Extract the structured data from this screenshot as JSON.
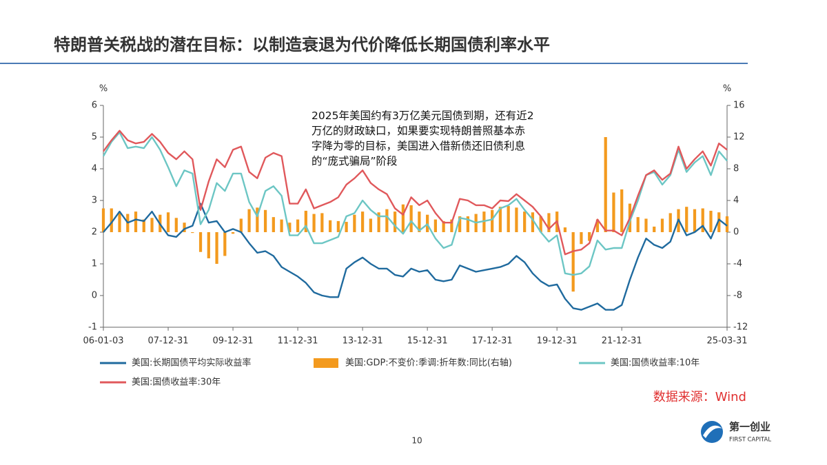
{
  "page_title": "特朗普关税战的潜在目标：以制造衰退为代价降低长期国债利率水平",
  "chart_data": {
    "type": "line",
    "annotation": [
      "2025年美国约有3万亿美元国债到期，还有近2",
      "万亿的财政缺口，如果要实现特朗普照基本赤",
      "字降为零的目标，美国进入借新债还旧债利息",
      "的“庞式骗局”阶段"
    ],
    "y_unit": "%",
    "y2_unit": "%",
    "categories": [
      "06-01-03",
      null,
      null,
      null,
      null,
      null,
      null,
      null,
      "07-12-31",
      null,
      null,
      null,
      null,
      null,
      null,
      null,
      "09-12-31",
      null,
      null,
      null,
      null,
      null,
      null,
      null,
      "11-12-31",
      null,
      null,
      null,
      null,
      null,
      null,
      null,
      "13-12-31",
      null,
      null,
      null,
      null,
      null,
      null,
      null,
      "15-12-31",
      null,
      null,
      null,
      null,
      null,
      null,
      null,
      "17-12-31",
      null,
      null,
      null,
      null,
      null,
      null,
      null,
      "19-12-31",
      null,
      null,
      null,
      null,
      null,
      null,
      null,
      "21-12-31",
      null,
      null,
      null,
      null,
      null,
      null,
      null,
      null,
      null,
      null,
      null,
      null,
      "25-03-31"
    ],
    "ylim": [
      -1,
      6
    ],
    "yticks": [
      -1,
      0,
      1,
      2,
      3,
      4,
      5,
      6
    ],
    "y2lim": [
      -12,
      16
    ],
    "y2ticks": [
      -12,
      -8,
      -4,
      0,
      4,
      8,
      12,
      16
    ],
    "series": [
      {
        "name": "美国:长期国债平均实际收益率",
        "color": "#1f6a9e",
        "values": [
          2.0,
          2.3,
          2.65,
          2.3,
          2.4,
          2.35,
          2.65,
          2.25,
          1.9,
          1.85,
          2.1,
          2.2,
          2.9,
          2.3,
          2.35,
          2.0,
          2.1,
          2.0,
          1.65,
          1.35,
          1.4,
          1.25,
          0.9,
          0.75,
          0.6,
          0.4,
          0.1,
          0.0,
          -0.05,
          -0.05,
          0.85,
          1.05,
          1.2,
          1.0,
          0.85,
          0.85,
          0.65,
          0.6,
          0.85,
          0.75,
          0.8,
          0.5,
          0.45,
          0.5,
          0.95,
          0.85,
          0.75,
          0.8,
          0.85,
          0.9,
          1.0,
          1.25,
          1.05,
          0.7,
          0.45,
          0.3,
          0.35,
          -0.1,
          -0.4,
          -0.45,
          -0.35,
          -0.25,
          -0.45,
          -0.45,
          -0.3,
          0.5,
          1.2,
          1.8,
          1.6,
          1.5,
          1.7,
          2.4,
          1.9,
          2.0,
          2.2,
          1.8,
          2.4,
          2.2
        ]
      },
      {
        "name": "美国:GDP:不变价:季调:折年数:同比(右轴)",
        "type": "bar",
        "axis": "y2",
        "color": "#f39a1e",
        "values": [
          3.0,
          3.0,
          2.5,
          2.3,
          2.6,
          1.6,
          1.8,
          2.2,
          2.5,
          1.8,
          1.2,
          -0.1,
          -2.5,
          -3.3,
          -4.0,
          -3.0,
          -0.2,
          1.7,
          2.9,
          3.1,
          2.8,
          1.9,
          1.6,
          1.2,
          1.6,
          2.7,
          2.3,
          2.4,
          1.5,
          1.4,
          1.3,
          2.2,
          2.6,
          1.7,
          2.5,
          2.9,
          2.6,
          3.5,
          3.4,
          2.6,
          2.2,
          1.6,
          1.4,
          1.6,
          2.0,
          2.0,
          2.3,
          2.6,
          2.8,
          3.2,
          3.3,
          3.1,
          2.6,
          2.5,
          2.0,
          2.4,
          2.6,
          0.6,
          -7.5,
          -1.5,
          -1.1,
          1.6,
          12.0,
          5.0,
          5.4,
          3.6,
          1.9,
          1.7,
          0.7,
          1.7,
          2.4,
          2.9,
          3.2,
          2.9,
          3.0,
          2.7,
          2.5,
          2.0
        ]
      },
      {
        "name": "美国:国债收益率:10年",
        "color": "#6cc6c4",
        "values": [
          4.4,
          4.85,
          5.15,
          4.65,
          4.7,
          4.65,
          5.0,
          4.6,
          4.05,
          3.45,
          3.95,
          3.85,
          2.25,
          2.7,
          3.55,
          3.3,
          3.85,
          3.85,
          2.95,
          2.5,
          3.3,
          3.45,
          3.15,
          1.9,
          1.9,
          2.2,
          1.65,
          1.65,
          1.75,
          1.85,
          2.5,
          2.6,
          3.0,
          2.7,
          2.5,
          2.5,
          2.2,
          1.95,
          2.35,
          2.05,
          2.25,
          1.8,
          1.5,
          1.6,
          2.45,
          2.4,
          2.3,
          2.35,
          2.4,
          2.75,
          2.85,
          3.05,
          2.7,
          2.4,
          2.0,
          1.7,
          1.9,
          0.7,
          0.65,
          0.7,
          0.92,
          1.74,
          1.45,
          1.5,
          1.5,
          2.35,
          3.0,
          3.8,
          3.9,
          3.5,
          3.8,
          4.6,
          3.9,
          4.2,
          4.4,
          3.8,
          4.55,
          4.25
        ]
      },
      {
        "name": "美国:国债收益率:30年",
        "color": "#e0585b",
        "values": [
          4.55,
          4.9,
          5.2,
          4.9,
          4.8,
          4.85,
          5.1,
          4.85,
          4.5,
          4.3,
          4.55,
          4.3,
          2.7,
          3.6,
          4.3,
          4.05,
          4.6,
          4.7,
          3.9,
          3.7,
          4.35,
          4.5,
          4.4,
          2.9,
          2.9,
          3.35,
          2.75,
          2.85,
          2.95,
          3.1,
          3.5,
          3.7,
          3.95,
          3.55,
          3.35,
          3.2,
          2.75,
          2.55,
          3.1,
          2.85,
          3.0,
          2.6,
          2.3,
          2.3,
          3.05,
          3.0,
          2.85,
          2.85,
          2.75,
          3.0,
          2.98,
          3.2,
          3.0,
          2.8,
          2.5,
          2.1,
          2.35,
          1.3,
          1.4,
          1.45,
          1.65,
          2.4,
          2.05,
          2.05,
          1.9,
          2.45,
          3.15,
          3.8,
          3.95,
          3.65,
          3.85,
          4.7,
          4.0,
          4.3,
          4.55,
          4.1,
          4.8,
          4.6
        ]
      }
    ]
  },
  "source": "数据来源：Wind",
  "page_number": "10",
  "logo": {
    "name": "第一创业",
    "english": "FIRST CAPITAL"
  }
}
